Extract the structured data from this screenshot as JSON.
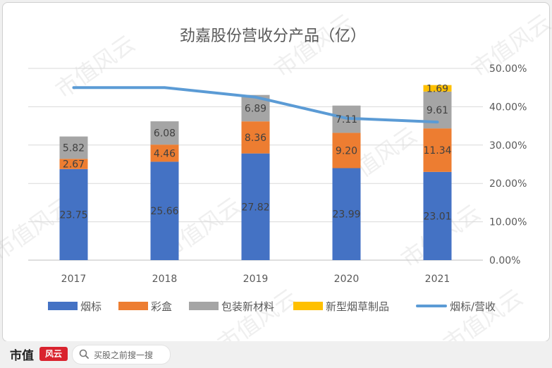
{
  "chart_data": {
    "type": "bar",
    "stacked": true,
    "title": "劲嘉股份营收分产品（亿）",
    "categories": [
      "2017",
      "2018",
      "2019",
      "2020",
      "2021"
    ],
    "series": [
      {
        "name": "烟标",
        "color": "#4472c4",
        "values": [
          23.75,
          25.66,
          27.82,
          23.99,
          23.01
        ],
        "labels": [
          "23.75",
          "25.66",
          "27.82",
          "23.99",
          "23.01"
        ]
      },
      {
        "name": "彩盒",
        "color": "#ed7d31",
        "values": [
          2.67,
          4.46,
          8.36,
          9.2,
          11.34
        ],
        "labels": [
          "2.67",
          "4.46",
          "8.36",
          "9.20",
          "11.34"
        ]
      },
      {
        "name": "包装新材料",
        "color": "#a5a5a5",
        "values": [
          5.82,
          6.08,
          6.89,
          7.11,
          9.61
        ],
        "labels": [
          "5.82",
          "6.08",
          "6.89",
          "7.11",
          "9.61"
        ]
      },
      {
        "name": "新型烟草制品",
        "color": "#ffc000",
        "values": [
          0,
          0,
          0,
          0,
          1.69
        ],
        "labels": [
          "",
          "",
          "",
          "",
          "1.69"
        ]
      }
    ],
    "line_series": {
      "name": "烟标/营收",
      "color": "#5b9bd5",
      "axis": "right",
      "values": [
        0.45,
        0.45,
        0.425,
        0.37,
        0.36
      ]
    },
    "ylim_left": [
      0,
      50
    ],
    "ylim_right": [
      0,
      0.5
    ],
    "right_ticks": [
      "0.00%",
      "10.00%",
      "20.00%",
      "30.00%",
      "40.00%",
      "50.00%"
    ],
    "grid": true,
    "legend_position": "bottom"
  },
  "watermark": {
    "text": "市值风云"
  },
  "footer": {
    "brand": "市值",
    "logo_text": "风云",
    "search_text": "买股之前搜一搜"
  }
}
